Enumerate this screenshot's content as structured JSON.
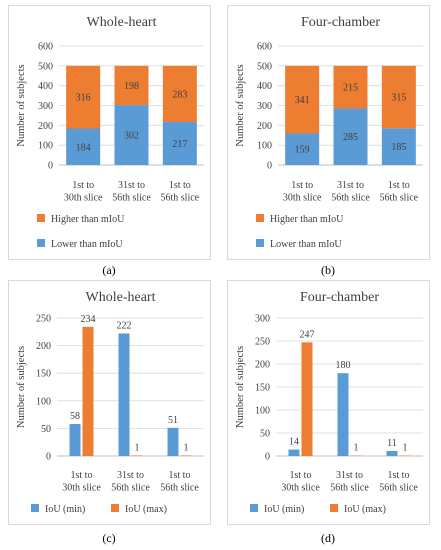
{
  "captions": [
    "(a)",
    "(b)",
    "(c)",
    "(d)"
  ],
  "colors": {
    "blue": "#5b9bd5",
    "orange": "#ed7d31",
    "grid": "#d9d9d9",
    "axis": "#bfbfbf",
    "text": "#404040"
  },
  "chart_data": [
    {
      "type": "bar",
      "stacked": true,
      "title": "Whole-heart",
      "ylabel": "Number of subjects",
      "categories": [
        [
          "1st to",
          "30th slice"
        ],
        [
          "31st to",
          "56th slice"
        ],
        [
          "1st to",
          "56th slice"
        ]
      ],
      "ylim": [
        0,
        600
      ],
      "yticks": [
        0,
        100,
        200,
        300,
        400,
        500,
        600
      ],
      "series": [
        {
          "name": "Lower  than mIoU",
          "color": "#5b9bd5",
          "values": [
            184,
            302,
            217
          ]
        },
        {
          "name": "Higher than mIoU",
          "color": "#ed7d31",
          "values": [
            316,
            198,
            283
          ]
        }
      ],
      "legend_order": [
        1,
        0
      ],
      "legend_position": "bottom",
      "grid": true
    },
    {
      "type": "bar",
      "stacked": true,
      "title": "Four-chamber",
      "ylabel": "Number of subjects",
      "categories": [
        [
          "1st to",
          "30th slice"
        ],
        [
          "31st to",
          "56th slice"
        ],
        [
          "1st to",
          "56th slice"
        ]
      ],
      "ylim": [
        0,
        600
      ],
      "yticks": [
        0,
        100,
        200,
        300,
        400,
        500,
        600
      ],
      "series": [
        {
          "name": "Lower  than mIoU",
          "color": "#5b9bd5",
          "values": [
            159,
            285,
            185
          ]
        },
        {
          "name": "Higher than mIoU",
          "color": "#ed7d31",
          "values": [
            341,
            215,
            315
          ]
        }
      ],
      "legend_order": [
        1,
        0
      ],
      "legend_position": "bottom",
      "grid": true
    },
    {
      "type": "bar",
      "stacked": false,
      "title": "Whole-heart",
      "ylabel": "Number of subjects",
      "categories": [
        [
          "1st to",
          "30th slice"
        ],
        [
          "31st to",
          "56th slice"
        ],
        [
          "1st to",
          "56th slice"
        ]
      ],
      "ylim": [
        0,
        250
      ],
      "yticks": [
        0,
        50,
        100,
        150,
        200,
        250
      ],
      "series": [
        {
          "name": "IoU (min)",
          "color": "#5b9bd5",
          "values": [
            58,
            222,
            51
          ]
        },
        {
          "name": "IoU (max)",
          "color": "#ed7d31",
          "values": [
            234,
            1,
            1
          ]
        }
      ],
      "legend_order": [
        0,
        1
      ],
      "legend_position": "bottom",
      "grid": true
    },
    {
      "type": "bar",
      "stacked": false,
      "title": "Four-chamber",
      "ylabel": "Number of subjects",
      "categories": [
        [
          "1st to",
          "30th slice"
        ],
        [
          "31st to",
          "56th slice"
        ],
        [
          "1st to",
          "56th slice"
        ]
      ],
      "ylim": [
        0,
        300
      ],
      "yticks": [
        0,
        50,
        100,
        150,
        200,
        250,
        300
      ],
      "series": [
        {
          "name": "IoU (min)",
          "color": "#5b9bd5",
          "values": [
            14,
            180,
            11
          ]
        },
        {
          "name": "IoU (max)",
          "color": "#ed7d31",
          "values": [
            247,
            1,
            1
          ]
        }
      ],
      "legend_order": [
        0,
        1
      ],
      "legend_position": "bottom",
      "grid": true
    }
  ]
}
